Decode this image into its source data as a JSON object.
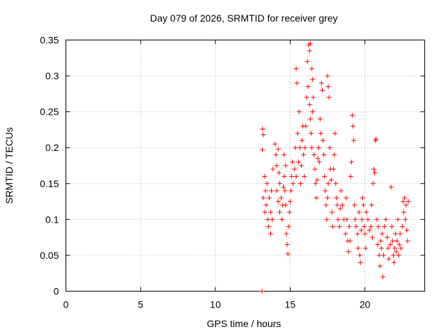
{
  "chart_data": {
    "type": "scatter",
    "title": "Day 079 of 2026, SRMTID for receiver grey",
    "xlabel": "GPS time / hours",
    "ylabel": "SRMTID / TECUs",
    "xlim": [
      0,
      24
    ],
    "ylim": [
      0,
      0.35
    ],
    "grid": true,
    "marker": "plus",
    "series_color": "#ff0000",
    "x_ticks": [
      0,
      5,
      10,
      15,
      20
    ],
    "x_tick_labels": [
      "0",
      "5",
      "10",
      "15",
      "20"
    ],
    "y_ticks": [
      0,
      0.05,
      0.1,
      0.15,
      0.2,
      0.25,
      0.3,
      0.35
    ],
    "y_tick_labels": [
      "0",
      "0.05",
      "0.1",
      "0.15",
      "0.2",
      "0.25",
      "0.3",
      "0.35"
    ],
    "points": [
      [
        13.12,
        0.0
      ],
      [
        13.15,
        0.226
      ],
      [
        13.2,
        0.218
      ],
      [
        13.15,
        0.197
      ],
      [
        13.3,
        0.16
      ],
      [
        13.35,
        0.14
      ],
      [
        13.2,
        0.13
      ],
      [
        13.4,
        0.12
      ],
      [
        13.3,
        0.11
      ],
      [
        13.5,
        0.1
      ],
      [
        13.45,
        0.15
      ],
      [
        13.6,
        0.13
      ],
      [
        13.55,
        0.09
      ],
      [
        13.7,
        0.08
      ],
      [
        13.7,
        0.11
      ],
      [
        13.8,
        0.1
      ],
      [
        13.75,
        0.14
      ],
      [
        13.85,
        0.17
      ],
      [
        14.0,
        0.205
      ],
      [
        14.05,
        0.19
      ],
      [
        14.1,
        0.175
      ],
      [
        14.2,
        0.198
      ],
      [
        14.25,
        0.165
      ],
      [
        14.3,
        0.15
      ],
      [
        14.1,
        0.14
      ],
      [
        14.2,
        0.125
      ],
      [
        14.3,
        0.11
      ],
      [
        14.4,
        0.13
      ],
      [
        14.45,
        0.1
      ],
      [
        14.5,
        0.12
      ],
      [
        14.55,
        0.145
      ],
      [
        14.6,
        0.16
      ],
      [
        14.65,
        0.14
      ],
      [
        14.7,
        0.12
      ],
      [
        14.75,
        0.08
      ],
      [
        14.8,
        0.065
      ],
      [
        14.85,
        0.052
      ],
      [
        14.9,
        0.09
      ],
      [
        14.95,
        0.11
      ],
      [
        14.6,
        0.19
      ],
      [
        14.7,
        0.175
      ],
      [
        15.0,
        0.125
      ],
      [
        15.05,
        0.14
      ],
      [
        15.1,
        0.16
      ],
      [
        15.15,
        0.18
      ],
      [
        15.2,
        0.15
      ],
      [
        15.3,
        0.17
      ],
      [
        15.35,
        0.2
      ],
      [
        15.4,
        0.16
      ],
      [
        15.4,
        0.31
      ],
      [
        15.45,
        0.29
      ],
      [
        15.5,
        0.22
      ],
      [
        15.55,
        0.18
      ],
      [
        15.6,
        0.25
      ],
      [
        15.65,
        0.2
      ],
      [
        15.7,
        0.15
      ],
      [
        15.75,
        0.175
      ],
      [
        15.8,
        0.21
      ],
      [
        15.85,
        0.23
      ],
      [
        15.9,
        0.19
      ],
      [
        15.95,
        0.16
      ],
      [
        16.0,
        0.2
      ],
      [
        16.05,
        0.23
      ],
      [
        16.1,
        0.27
      ],
      [
        16.15,
        0.32
      ],
      [
        16.2,
        0.285
      ],
      [
        16.25,
        0.343
      ],
      [
        16.3,
        0.335
      ],
      [
        16.35,
        0.345
      ],
      [
        16.3,
        0.26
      ],
      [
        16.35,
        0.24
      ],
      [
        16.4,
        0.22
      ],
      [
        16.45,
        0.2
      ],
      [
        16.5,
        0.25
      ],
      [
        16.55,
        0.27
      ],
      [
        16.45,
        0.31
      ],
      [
        16.5,
        0.295
      ],
      [
        16.6,
        0.19
      ],
      [
        16.65,
        0.17
      ],
      [
        16.7,
        0.15
      ],
      [
        16.75,
        0.13
      ],
      [
        16.8,
        0.155
      ],
      [
        16.85,
        0.185
      ],
      [
        16.9,
        0.2
      ],
      [
        16.95,
        0.18
      ],
      [
        17.0,
        0.24
      ],
      [
        17.05,
        0.22
      ],
      [
        17.1,
        0.29
      ],
      [
        17.15,
        0.28
      ],
      [
        17.2,
        0.21
      ],
      [
        17.25,
        0.19
      ],
      [
        17.3,
        0.16
      ],
      [
        17.35,
        0.14
      ],
      [
        17.4,
        0.12
      ],
      [
        17.45,
        0.1
      ],
      [
        17.5,
        0.13
      ],
      [
        17.55,
        0.15
      ],
      [
        17.5,
        0.3
      ],
      [
        17.55,
        0.285
      ],
      [
        17.6,
        0.27
      ],
      [
        17.65,
        0.2
      ],
      [
        17.7,
        0.17
      ],
      [
        17.75,
        0.155
      ],
      [
        17.8,
        0.11
      ],
      [
        17.85,
        0.09
      ],
      [
        17.9,
        0.17
      ],
      [
        17.95,
        0.19
      ],
      [
        18.0,
        0.22
      ],
      [
        18.05,
        0.15
      ],
      [
        18.1,
        0.13
      ],
      [
        18.15,
        0.12
      ],
      [
        18.2,
        0.1
      ],
      [
        18.3,
        0.09
      ],
      [
        18.35,
        0.115
      ],
      [
        18.4,
        0.14
      ],
      [
        18.5,
        0.12
      ],
      [
        18.6,
        0.1
      ],
      [
        18.7,
        0.08
      ],
      [
        18.75,
        0.13
      ],
      [
        18.8,
        0.1
      ],
      [
        18.85,
        0.07
      ],
      [
        18.9,
        0.055
      ],
      [
        18.95,
        0.09
      ],
      [
        19.0,
        0.07
      ],
      [
        19.05,
        0.16
      ],
      [
        19.1,
        0.18
      ],
      [
        19.15,
        0.245
      ],
      [
        19.2,
        0.23
      ],
      [
        19.25,
        0.21
      ],
      [
        19.3,
        0.12
      ],
      [
        19.35,
        0.1
      ],
      [
        19.4,
        0.09
      ],
      [
        19.5,
        0.08
      ],
      [
        19.55,
        0.06
      ],
      [
        19.6,
        0.11
      ],
      [
        19.65,
        0.05
      ],
      [
        19.7,
        0.04
      ],
      [
        19.75,
        0.085
      ],
      [
        19.8,
        0.1
      ],
      [
        19.85,
        0.13
      ],
      [
        19.9,
        0.12
      ],
      [
        19.95,
        0.09
      ],
      [
        20.0,
        0.08
      ],
      [
        20.05,
        0.06
      ],
      [
        20.1,
        0.11
      ],
      [
        20.2,
        0.1
      ],
      [
        20.3,
        0.085
      ],
      [
        20.4,
        0.09
      ],
      [
        20.45,
        0.12
      ],
      [
        20.5,
        0.075
      ],
      [
        20.55,
        0.15
      ],
      [
        20.6,
        0.17
      ],
      [
        20.65,
        0.165
      ],
      [
        20.7,
        0.21
      ],
      [
        20.75,
        0.212
      ],
      [
        20.8,
        0.1
      ],
      [
        20.85,
        0.065
      ],
      [
        20.9,
        0.09
      ],
      [
        20.95,
        0.05
      ],
      [
        21.0,
        0.035
      ],
      [
        21.05,
        0.07
      ],
      [
        21.1,
        0.06
      ],
      [
        21.15,
        0.08
      ],
      [
        21.2,
        0.02
      ],
      [
        21.25,
        0.05
      ],
      [
        21.3,
        0.09
      ],
      [
        21.4,
        0.1
      ],
      [
        21.5,
        0.075
      ],
      [
        21.55,
        0.06
      ],
      [
        21.6,
        0.045
      ],
      [
        21.7,
        0.065
      ],
      [
        21.75,
        0.145
      ],
      [
        21.8,
        0.09
      ],
      [
        21.85,
        0.07
      ],
      [
        21.9,
        0.05
      ],
      [
        21.95,
        0.04
      ],
      [
        22.0,
        0.06
      ],
      [
        22.05,
        0.08
      ],
      [
        22.1,
        0.055
      ],
      [
        22.15,
        0.07
      ],
      [
        22.2,
        0.1
      ],
      [
        22.25,
        0.05
      ],
      [
        22.3,
        0.065
      ],
      [
        22.35,
        0.08
      ],
      [
        22.4,
        0.06
      ],
      [
        22.5,
        0.09
      ],
      [
        22.55,
        0.125
      ],
      [
        22.6,
        0.11
      ],
      [
        22.65,
        0.13
      ],
      [
        22.7,
        0.1
      ],
      [
        22.75,
        0.12
      ],
      [
        22.8,
        0.085
      ],
      [
        22.85,
        0.07
      ],
      [
        22.9,
        0.125
      ]
    ]
  }
}
